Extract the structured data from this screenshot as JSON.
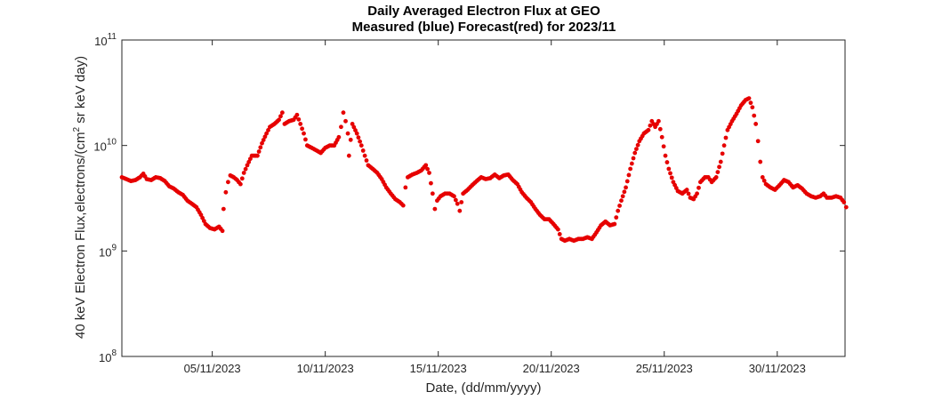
{
  "chart_data": {
    "type": "scatter",
    "title": "Daily Averaged Electron Flux at GEO",
    "subtitle": "Measured (blue) Forecast(red) for 2023/11",
    "xlabel": "Date, (dd/mm/yyyy)",
    "ylabel": "40 keV Electron Flux,electrons/(cm² sr keV day)",
    "yscale": "log",
    "ylim": [
      100000000.0,
      100000000000.0
    ],
    "xlim": [
      1,
      33
    ],
    "grid": false,
    "marker_color": "#e60000",
    "x_ticks": [
      {
        "value": 5,
        "label": "05/11/2023"
      },
      {
        "value": 10,
        "label": "10/11/2023"
      },
      {
        "value": 15,
        "label": "15/11/2023"
      },
      {
        "value": 20,
        "label": "20/11/2023"
      },
      {
        "value": 25,
        "label": "25/11/2023"
      },
      {
        "value": 30,
        "label": "30/11/2023"
      }
    ],
    "y_ticks": [
      {
        "exp": 8,
        "base": "10",
        "power": "8"
      },
      {
        "exp": 9,
        "base": "10",
        "power": "9"
      },
      {
        "exp": 10,
        "base": "10",
        "power": "10"
      },
      {
        "exp": 11,
        "base": "10",
        "power": "11"
      }
    ],
    "series": [
      {
        "name": "Forecast",
        "color": "#e60000",
        "points": [
          [
            1.0,
            5000000000.0
          ],
          [
            1.2,
            4800000000.0
          ],
          [
            1.4,
            4600000000.0
          ],
          [
            1.6,
            4700000000.0
          ],
          [
            1.8,
            5000000000.0
          ],
          [
            1.95,
            5400000000.0
          ],
          [
            2.1,
            4800000000.0
          ],
          [
            2.3,
            4700000000.0
          ],
          [
            2.5,
            5000000000.0
          ],
          [
            2.7,
            4900000000.0
          ],
          [
            2.9,
            4600000000.0
          ],
          [
            3.1,
            4100000000.0
          ],
          [
            3.3,
            3900000000.0
          ],
          [
            3.5,
            3600000000.0
          ],
          [
            3.7,
            3400000000.0
          ],
          [
            3.9,
            3000000000.0
          ],
          [
            4.1,
            2800000000.0
          ],
          [
            4.3,
            2600000000.0
          ],
          [
            4.5,
            2200000000.0
          ],
          [
            4.7,
            1800000000.0
          ],
          [
            4.9,
            1650000000.0
          ],
          [
            5.1,
            1600000000.0
          ],
          [
            5.3,
            1700000000.0
          ],
          [
            5.45,
            1550000000.0
          ],
          [
            5.5,
            2500000000.0
          ],
          [
            5.6,
            3600000000.0
          ],
          [
            5.7,
            4500000000.0
          ],
          [
            5.8,
            5200000000.0
          ],
          [
            5.95,
            5000000000.0
          ],
          [
            6.1,
            4700000000.0
          ],
          [
            6.25,
            4300000000.0
          ],
          [
            6.4,
            5500000000.0
          ],
          [
            6.55,
            6500000000.0
          ],
          [
            6.75,
            8000000000.0
          ],
          [
            7.0,
            8000000000.0
          ],
          [
            7.2,
            10500000000.0
          ],
          [
            7.4,
            13000000000.0
          ],
          [
            7.55,
            15000000000.0
          ],
          [
            7.75,
            16000000000.0
          ],
          [
            7.95,
            17500000000.0
          ],
          [
            8.1,
            20500000000.0
          ],
          [
            8.2,
            16000000000.0
          ],
          [
            8.4,
            17000000000.0
          ],
          [
            8.6,
            17500000000.0
          ],
          [
            8.75,
            19500000000.0
          ],
          [
            8.9,
            16000000000.0
          ],
          [
            9.05,
            13000000000.0
          ],
          [
            9.2,
            10000000000.0
          ],
          [
            9.4,
            9500000000.0
          ],
          [
            9.6,
            9000000000.0
          ],
          [
            9.8,
            8500000000.0
          ],
          [
            10.0,
            9500000000.0
          ],
          [
            10.2,
            10000000000.0
          ],
          [
            10.4,
            10000000000.0
          ],
          [
            10.6,
            12000000000.0
          ],
          [
            10.7,
            15000000000.0
          ],
          [
            10.8,
            20500000000.0
          ],
          [
            10.9,
            17000000000.0
          ],
          [
            11.0,
            13000000000.0
          ],
          [
            11.05,
            8000000000.0
          ],
          [
            11.2,
            16000000000.0
          ],
          [
            11.4,
            13000000000.0
          ],
          [
            11.6,
            10000000000.0
          ],
          [
            11.75,
            8000000000.0
          ],
          [
            11.9,
            6500000000.0
          ],
          [
            12.1,
            6000000000.0
          ],
          [
            12.3,
            5500000000.0
          ],
          [
            12.5,
            4800000000.0
          ],
          [
            12.7,
            4000000000.0
          ],
          [
            12.9,
            3500000000.0
          ],
          [
            13.1,
            3100000000.0
          ],
          [
            13.3,
            2900000000.0
          ],
          [
            13.45,
            2700000000.0
          ],
          [
            13.55,
            4000000000.0
          ],
          [
            13.65,
            5000000000.0
          ],
          [
            13.85,
            5300000000.0
          ],
          [
            14.05,
            5500000000.0
          ],
          [
            14.25,
            5800000000.0
          ],
          [
            14.45,
            6500000000.0
          ],
          [
            14.6,
            5500000000.0
          ],
          [
            14.75,
            3500000000.0
          ],
          [
            14.85,
            2500000000.0
          ],
          [
            14.95,
            3000000000.0
          ],
          [
            15.1,
            3300000000.0
          ],
          [
            15.3,
            3500000000.0
          ],
          [
            15.5,
            3500000000.0
          ],
          [
            15.7,
            3300000000.0
          ],
          [
            15.85,
            2800000000.0
          ],
          [
            15.95,
            2400000000.0
          ],
          [
            16.1,
            3500000000.0
          ],
          [
            16.3,
            3800000000.0
          ],
          [
            16.5,
            4200000000.0
          ],
          [
            16.7,
            4600000000.0
          ],
          [
            16.9,
            5000000000.0
          ],
          [
            17.1,
            4800000000.0
          ],
          [
            17.3,
            4900000000.0
          ],
          [
            17.5,
            5300000000.0
          ],
          [
            17.7,
            4900000000.0
          ],
          [
            17.9,
            5200000000.0
          ],
          [
            18.1,
            5300000000.0
          ],
          [
            18.3,
            4700000000.0
          ],
          [
            18.5,
            4300000000.0
          ],
          [
            18.7,
            3600000000.0
          ],
          [
            18.9,
            3200000000.0
          ],
          [
            19.1,
            2900000000.0
          ],
          [
            19.3,
            2500000000.0
          ],
          [
            19.5,
            2200000000.0
          ],
          [
            19.7,
            2000000000.0
          ],
          [
            19.9,
            2000000000.0
          ],
          [
            20.1,
            1800000000.0
          ],
          [
            20.3,
            1600000000.0
          ],
          [
            20.45,
            1300000000.0
          ],
          [
            20.6,
            1250000000.0
          ],
          [
            20.8,
            1300000000.0
          ],
          [
            21.0,
            1250000000.0
          ],
          [
            21.2,
            1300000000.0
          ],
          [
            21.4,
            1300000000.0
          ],
          [
            21.6,
            1350000000.0
          ],
          [
            21.8,
            1300000000.0
          ],
          [
            22.0,
            1500000000.0
          ],
          [
            22.2,
            1750000000.0
          ],
          [
            22.4,
            1900000000.0
          ],
          [
            22.6,
            1750000000.0
          ],
          [
            22.8,
            1800000000.0
          ],
          [
            22.95,
            2400000000.0
          ],
          [
            23.1,
            3000000000.0
          ],
          [
            23.3,
            4000000000.0
          ],
          [
            23.5,
            6000000000.0
          ],
          [
            23.7,
            8500000000.0
          ],
          [
            23.9,
            11000000000.0
          ],
          [
            24.1,
            13000000000.0
          ],
          [
            24.3,
            14000000000.0
          ],
          [
            24.45,
            17000000000.0
          ],
          [
            24.6,
            15000000000.0
          ],
          [
            24.75,
            17000000000.0
          ],
          [
            24.9,
            12000000000.0
          ],
          [
            25.05,
            8000000000.0
          ],
          [
            25.2,
            6000000000.0
          ],
          [
            25.4,
            4500000000.0
          ],
          [
            25.6,
            3700000000.0
          ],
          [
            25.8,
            3500000000.0
          ],
          [
            26.0,
            3800000000.0
          ],
          [
            26.15,
            3200000000.0
          ],
          [
            26.3,
            3100000000.0
          ],
          [
            26.45,
            3500000000.0
          ],
          [
            26.6,
            4500000000.0
          ],
          [
            26.8,
            5000000000.0
          ],
          [
            26.95,
            5000000000.0
          ],
          [
            27.1,
            4500000000.0
          ],
          [
            27.3,
            5000000000.0
          ],
          [
            27.5,
            7000000000.0
          ],
          [
            27.65,
            10000000000.0
          ],
          [
            27.8,
            14000000000.0
          ],
          [
            28.0,
            17000000000.0
          ],
          [
            28.2,
            20000000000.0
          ],
          [
            28.4,
            24000000000.0
          ],
          [
            28.6,
            27000000000.0
          ],
          [
            28.75,
            28000000000.0
          ],
          [
            28.9,
            23000000000.0
          ],
          [
            29.05,
            16000000000.0
          ],
          [
            29.15,
            11000000000.0
          ],
          [
            29.25,
            7000000000.0
          ],
          [
            29.35,
            5000000000.0
          ],
          [
            29.5,
            4300000000.0
          ],
          [
            29.7,
            4000000000.0
          ],
          [
            29.9,
            3800000000.0
          ],
          [
            30.1,
            4200000000.0
          ],
          [
            30.3,
            4700000000.0
          ],
          [
            30.5,
            4500000000.0
          ],
          [
            30.7,
            4000000000.0
          ],
          [
            30.9,
            4200000000.0
          ],
          [
            31.1,
            3900000000.0
          ],
          [
            31.3,
            3500000000.0
          ],
          [
            31.5,
            3300000000.0
          ],
          [
            31.7,
            3200000000.0
          ],
          [
            31.9,
            3300000000.0
          ],
          [
            32.05,
            3500000000.0
          ],
          [
            32.2,
            3200000000.0
          ],
          [
            32.4,
            3200000000.0
          ],
          [
            32.6,
            3300000000.0
          ],
          [
            32.8,
            3200000000.0
          ],
          [
            32.95,
            2900000000.0
          ],
          [
            33.05,
            2600000000.0
          ]
        ]
      }
    ]
  }
}
